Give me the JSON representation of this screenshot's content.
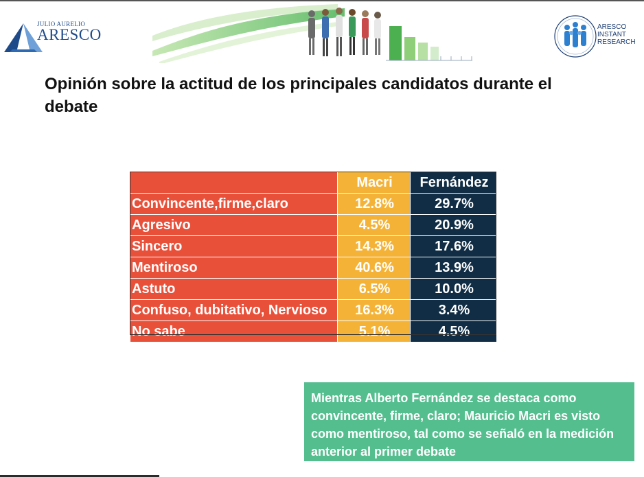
{
  "logo_left": {
    "small_text": "JULIO AURELIO",
    "big_text": "ARESCO"
  },
  "logo_right": {
    "lines": [
      "ARESCO",
      "INSTANT",
      "RESEARCH"
    ]
  },
  "title": "Opinión sobre la actitud de los principales candidatos durante el debate",
  "chart_data": {
    "type": "table",
    "columns": [
      "",
      "Macri",
      "Fernández"
    ],
    "rows": [
      {
        "label": "Convincente,firme,claro",
        "macri": "12.8%",
        "fernandez": "29.7%"
      },
      {
        "label": "Agresivo",
        "macri": "4.5%",
        "fernandez": "20.9%"
      },
      {
        "label": "Sincero",
        "macri": "14.3%",
        "fernandez": "17.6%"
      },
      {
        "label": "Mentiroso",
        "macri": "40.6%",
        "fernandez": "13.9%"
      },
      {
        "label": "Astuto",
        "macri": "6.5%",
        "fernandez": "10.0%"
      },
      {
        "label": "Confuso, dubitativo, Nervioso",
        "macri": "16.3%",
        "fernandez": "3.4%"
      },
      {
        "label": "No sabe",
        "macri": "5.1%",
        "fernandez": "4.5%"
      }
    ],
    "colors": {
      "label": "#e9503a",
      "macri": "#f4b337",
      "fernandez": "#102d45"
    }
  },
  "note": {
    "text": "Mientras Alberto Fernández se destaca como convincente, firme, claro; Mauricio Macri es visto como mentiroso, tal como se señaló en la medición anterior al primer debate",
    "color": "#54be8f"
  },
  "icons": {
    "left_logo": "triangle-logo-icon",
    "banner": "people-bar-chart-banner-icon",
    "right_logo": "figures-circle-logo-icon"
  }
}
